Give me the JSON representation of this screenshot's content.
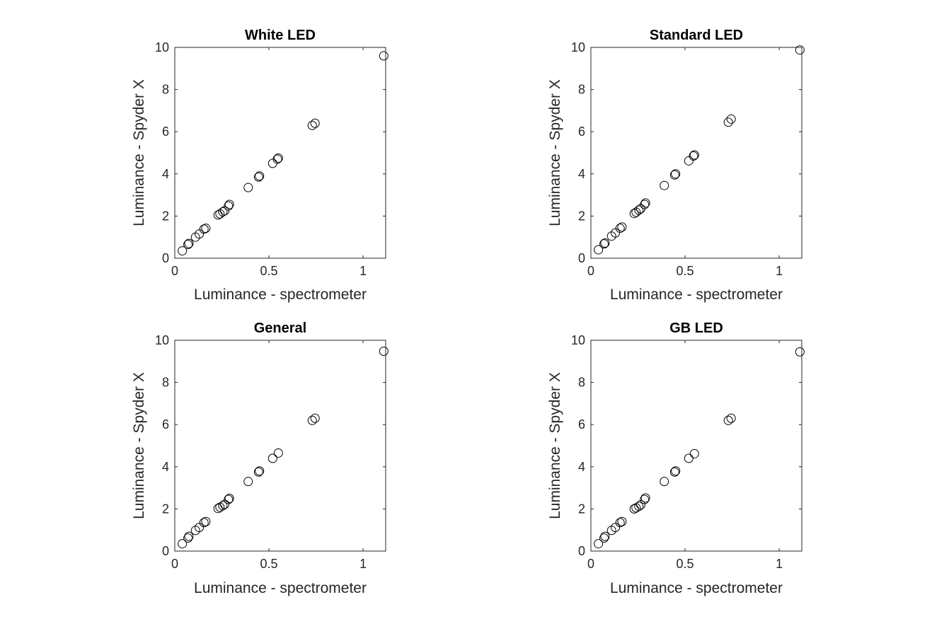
{
  "chart_data": [
    {
      "type": "scatter",
      "title": "White LED",
      "xlabel": "Luminance - spectrometer",
      "ylabel": "Luminance - Spyder X",
      "xlim": [
        0,
        1.12
      ],
      "ylim": [
        0,
        10
      ],
      "xticks": [
        "0",
        "0.5",
        "1"
      ],
      "yticks": [
        "0",
        "2",
        "4",
        "6",
        "8",
        "10"
      ],
      "grid": false,
      "marker": "open-circle",
      "color": "#000000",
      "series": [
        {
          "x": [
            0.04,
            0.07,
            0.075,
            0.11,
            0.13,
            0.155,
            0.165,
            0.23,
            0.24,
            0.255,
            0.265,
            0.285,
            0.29,
            0.39,
            0.445,
            0.45,
            0.52,
            0.545,
            0.55,
            0.73,
            0.745,
            1.11
          ],
          "y": [
            0.35,
            0.65,
            0.7,
            1.0,
            1.15,
            1.38,
            1.42,
            2.05,
            2.1,
            2.2,
            2.25,
            2.48,
            2.55,
            3.35,
            3.85,
            3.9,
            4.5,
            4.7,
            4.75,
            6.3,
            6.4,
            9.6
          ]
        }
      ]
    },
    {
      "type": "scatter",
      "title": "Standard LED",
      "xlabel": "Luminance - spectrometer",
      "ylabel": "Luminance - Spyder X",
      "xlim": [
        0,
        1.12
      ],
      "ylim": [
        0,
        10
      ],
      "xticks": [
        "0",
        "0.5",
        "1"
      ],
      "yticks": [
        "0",
        "2",
        "4",
        "6",
        "8",
        "10"
      ],
      "grid": false,
      "marker": "open-circle",
      "color": "#000000",
      "series": [
        {
          "x": [
            0.04,
            0.07,
            0.075,
            0.11,
            0.13,
            0.155,
            0.165,
            0.23,
            0.24,
            0.255,
            0.265,
            0.285,
            0.29,
            0.39,
            0.445,
            0.45,
            0.52,
            0.545,
            0.55,
            0.73,
            0.745,
            1.11
          ],
          "y": [
            0.4,
            0.68,
            0.72,
            1.05,
            1.2,
            1.42,
            1.48,
            2.12,
            2.18,
            2.28,
            2.35,
            2.55,
            2.62,
            3.45,
            3.95,
            4.0,
            4.62,
            4.85,
            4.9,
            6.45,
            6.6,
            9.88
          ]
        }
      ]
    },
    {
      "type": "scatter",
      "title": "General",
      "xlabel": "Luminance - spectrometer",
      "ylabel": "Luminance - Spyder X",
      "xlim": [
        0,
        1.12
      ],
      "ylim": [
        0,
        10
      ],
      "xticks": [
        "0",
        "0.5",
        "1"
      ],
      "yticks": [
        "0",
        "2",
        "4",
        "6",
        "8",
        "10"
      ],
      "grid": false,
      "marker": "open-circle",
      "color": "#000000",
      "series": [
        {
          "x": [
            0.04,
            0.07,
            0.075,
            0.11,
            0.13,
            0.155,
            0.165,
            0.23,
            0.24,
            0.255,
            0.265,
            0.285,
            0.29,
            0.39,
            0.445,
            0.45,
            0.52,
            0.55,
            0.73,
            0.745,
            1.11
          ],
          "y": [
            0.35,
            0.62,
            0.7,
            0.98,
            1.12,
            1.35,
            1.4,
            2.02,
            2.08,
            2.15,
            2.22,
            2.45,
            2.5,
            3.3,
            3.75,
            3.8,
            4.4,
            4.65,
            6.2,
            6.3,
            9.48
          ]
        }
      ]
    },
    {
      "type": "scatter",
      "title": "GB LED",
      "xlabel": "Luminance - spectrometer",
      "ylabel": "Luminance - Spyder X",
      "xlim": [
        0,
        1.12
      ],
      "ylim": [
        0,
        10
      ],
      "xticks": [
        "0",
        "0.5",
        "1"
      ],
      "yticks": [
        "0",
        "2",
        "4",
        "6",
        "8",
        "10"
      ],
      "grid": false,
      "marker": "open-circle",
      "color": "#000000",
      "series": [
        {
          "x": [
            0.04,
            0.07,
            0.075,
            0.11,
            0.13,
            0.155,
            0.165,
            0.23,
            0.24,
            0.255,
            0.265,
            0.285,
            0.29,
            0.39,
            0.445,
            0.45,
            0.52,
            0.55,
            0.73,
            0.745,
            1.11
          ],
          "y": [
            0.35,
            0.62,
            0.7,
            0.98,
            1.12,
            1.35,
            1.4,
            2.0,
            2.05,
            2.12,
            2.2,
            2.45,
            2.52,
            3.3,
            3.75,
            3.8,
            4.4,
            4.62,
            6.2,
            6.3,
            9.45
          ]
        }
      ]
    }
  ]
}
